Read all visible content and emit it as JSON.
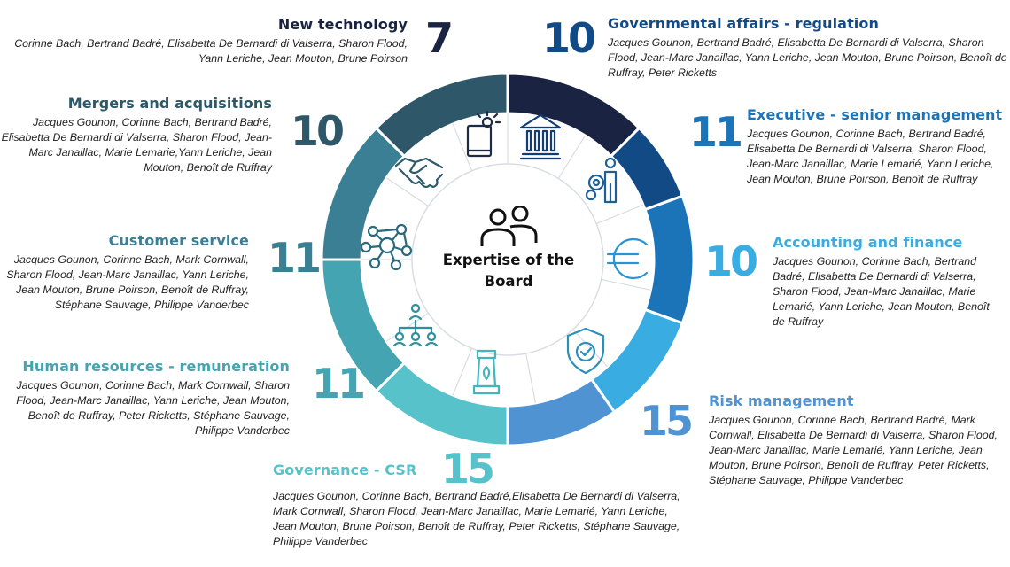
{
  "center": {
    "title": "Expertise of the Board",
    "icon": "people-icon"
  },
  "colors": {
    "ring_text": "#0d4a8a",
    "divider": "#d9dde2",
    "inner_icons": [
      "#1e2b44",
      "#123c74",
      "#1f5f94",
      "#2b93d4",
      "#2b8fb9",
      "#45b5bd",
      "#2f8f9c",
      "#2a6a7c",
      "#2e5a6a",
      "#2b3e55"
    ]
  },
  "segments": [
    {
      "key": "new-technology",
      "name": "New technology",
      "count": "7",
      "color": "#1a2341",
      "members": "Corinne Bach, Bertrand Badré, Elisabetta De Bernardi di Valserra, Sharon Flood, Yann Leriche, Jean Mouton, Brune Poirson",
      "icon": "tablet-lightbulb-icon"
    },
    {
      "key": "governmental-affairs",
      "name": "Governmental affairs - regulation",
      "count": "10",
      "color": "#124a86",
      "members": "Jacques Gounon, Bertrand Badré, Elisabetta De Bernardi di Valserra, Sharon Flood, Jean-Marc Janaillac, Yann Leriche, Jean Mouton, Brune Poirson, Benoît de Ruffray, Peter Ricketts",
      "icon": "government-building-icon"
    },
    {
      "key": "executive",
      "name": "Executive - senior management",
      "count": "11",
      "color": "#1c74b8",
      "members": "Jacques Gounon, Corinne Bach, Bertrand Badré, Elisabetta De Bernardi di Valserra, Sharon Flood, Jean-Marc Janaillac, Marie Lemarié, Yann Leriche, Jean Mouton, Brune Poirson, Benoît de Ruffray",
      "icon": "manager-gears-icon"
    },
    {
      "key": "accounting",
      "name": "Accounting and finance",
      "count": "10",
      "color": "#39ade2",
      "members": "Jacques Gounon, Corinne Bach, Bertrand Badré, Elisabetta De Bernardi di Valserra, Sharon Flood, Jean-Marc Janaillac, Marie Lemarié, Yann Leriche, Jean Mouton, Benoît de Ruffray",
      "icon": "euro-icon"
    },
    {
      "key": "risk",
      "name": "Risk management",
      "count": "15",
      "color": "#4f93d3",
      "members": "Jacques Gounon, Corinne Bach, Bertrand Badré, Mark Cornwall, Elisabetta De Bernardi di Valserra, Sharon Flood, Jean-Marc Janaillac, Marie Lemarié, Yann Leriche, Jean Mouton, Brune Poirson, Benoît de Ruffray, Peter Ricketts, Stéphane Sauvage, Philippe Vanderbec",
      "icon": "shield-check-icon"
    },
    {
      "key": "governance",
      "name": "Governance - CSR",
      "count": "15",
      "color": "#57c2c9",
      "members": "Jacques Gounon, Corinne Bach, Bertrand Badré,Elisabetta De Bernardi di Valserra, Mark Cornwall, Sharon Flood, Jean-Marc Janaillac, Marie Lemarié, Yann Leriche, Jean Mouton, Brune Poirson, Benoît de Ruffray, Peter Ricketts, Stéphane Sauvage, Philippe Vanderbec",
      "icon": "chess-rook-leaf-icon"
    },
    {
      "key": "human-resources",
      "name": "Human resources - remuneration",
      "count": "11",
      "color": "#45a4b2",
      "members": "Jacques Gounon, Corinne Bach, Mark Cornwall, Sharon Flood, Jean-Marc Janaillac, Yann Leriche, Jean Mouton, Benoît de Ruffray, Peter Ricketts, Stéphane Sauvage, Philippe Vanderbec",
      "icon": "org-chart-icon"
    },
    {
      "key": "customer-service",
      "name": "Customer service",
      "count": "11",
      "color": "#3a7f93",
      "members": "Jacques Gounon, Corinne Bach, Mark Cornwall, Sharon Flood, Jean-Marc Janaillac, Yann Leriche, Jean Mouton, Brune Poirson, Benoît de Ruffray, Stéphane Sauvage, Philippe Vanderbec",
      "icon": "network-icon"
    },
    {
      "key": "mergers",
      "name": "Mergers and acquisitions",
      "count": "10",
      "color": "#2e5869",
      "members": "Jacques Gounon, Corinne Bach, Bertrand Badré, Elisabetta De Bernardi di Valserra, Sharon Flood, Jean-Marc Janaillac, Marie Lemarie,Yann Leriche, Jean Mouton, Benoît de Ruffray",
      "icon": "handshake-icon"
    }
  ]
}
